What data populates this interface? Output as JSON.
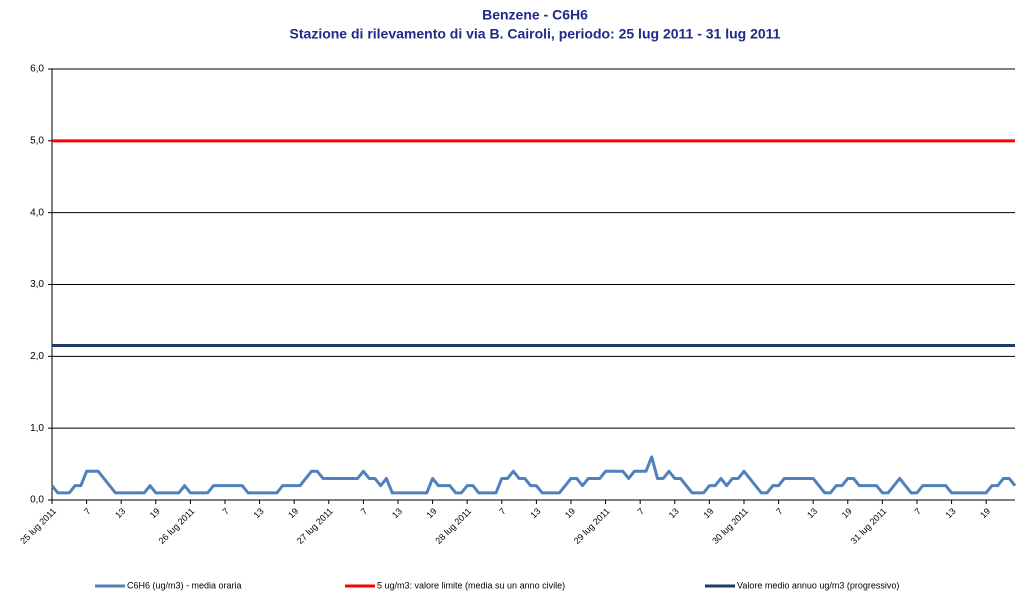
{
  "chart_data": {
    "type": "line",
    "title": "Benzene - C6H6",
    "subtitle": "Stazione di rilevamento di via B. Cairoli, periodo: 25 lug 2011 - 31 lug 2011",
    "categories": [
      "25 lug 2011",
      null,
      null,
      null,
      null,
      null,
      "7",
      null,
      null,
      null,
      null,
      null,
      "13",
      null,
      null,
      null,
      null,
      null,
      "19",
      null,
      null,
      null,
      null,
      null,
      "26 lug 2011",
      null,
      null,
      null,
      null,
      null,
      "7",
      null,
      null,
      null,
      null,
      null,
      "13",
      null,
      null,
      null,
      null,
      null,
      "19",
      null,
      null,
      null,
      null,
      null,
      "27 lug 2011",
      null,
      null,
      null,
      null,
      null,
      "7",
      null,
      null,
      null,
      null,
      null,
      "13",
      null,
      null,
      null,
      null,
      null,
      "19",
      null,
      null,
      null,
      null,
      null,
      "28 lug 2011",
      null,
      null,
      null,
      null,
      null,
      "7",
      null,
      null,
      null,
      null,
      null,
      "13",
      null,
      null,
      null,
      null,
      null,
      "19",
      null,
      null,
      null,
      null,
      null,
      "29 lug 2011",
      null,
      null,
      null,
      null,
      null,
      "7",
      null,
      null,
      null,
      null,
      null,
      "13",
      null,
      null,
      null,
      null,
      null,
      "19",
      null,
      null,
      null,
      null,
      null,
      "30 lug 2011",
      null,
      null,
      null,
      null,
      null,
      "7",
      null,
      null,
      null,
      null,
      null,
      "13",
      null,
      null,
      null,
      null,
      null,
      "19",
      null,
      null,
      null,
      null,
      null,
      "31 lug 2011",
      null,
      null,
      null,
      null,
      null,
      "7",
      null,
      null,
      null,
      null,
      null,
      "13",
      null,
      null,
      null,
      null,
      null,
      "19",
      null,
      null,
      null,
      null,
      null
    ],
    "series": [
      {
        "name": "C6H6 (ug/m3)  - media oraria",
        "color": "#4f81bd",
        "values": [
          0.2,
          0.1,
          0.1,
          0.1,
          0.2,
          0.2,
          0.4,
          0.4,
          0.4,
          0.3,
          0.2,
          0.1,
          0.1,
          0.1,
          0.1,
          0.1,
          0.1,
          0.2,
          0.1,
          0.1,
          0.1,
          0.1,
          0.1,
          0.2,
          0.1,
          0.1,
          0.1,
          0.1,
          0.2,
          0.2,
          0.2,
          0.2,
          0.2,
          0.2,
          0.1,
          0.1,
          0.1,
          0.1,
          0.1,
          0.1,
          0.2,
          0.2,
          0.2,
          0.2,
          0.3,
          0.4,
          0.4,
          0.3,
          0.3,
          0.3,
          0.3,
          0.3,
          0.3,
          0.3,
          0.4,
          0.3,
          0.3,
          0.2,
          0.3,
          0.1,
          0.1,
          0.1,
          0.1,
          0.1,
          0.1,
          0.1,
          0.3,
          0.2,
          0.2,
          0.2,
          0.1,
          0.1,
          0.2,
          0.2,
          0.1,
          0.1,
          0.1,
          0.1,
          0.3,
          0.3,
          0.4,
          0.3,
          0.3,
          0.2,
          0.2,
          0.1,
          0.1,
          0.1,
          0.1,
          0.2,
          0.3,
          0.3,
          0.2,
          0.3,
          0.3,
          0.3,
          0.4,
          0.4,
          0.4,
          0.4,
          0.3,
          0.4,
          0.4,
          0.4,
          0.6,
          0.3,
          0.3,
          0.4,
          0.3,
          0.3,
          0.2,
          0.1,
          0.1,
          0.1,
          0.2,
          0.2,
          0.3,
          0.2,
          0.3,
          0.3,
          0.4,
          0.3,
          0.2,
          0.1,
          0.1,
          0.2,
          0.2,
          0.3,
          0.3,
          0.3,
          0.3,
          0.3,
          0.3,
          0.2,
          0.1,
          0.1,
          0.2,
          0.2,
          0.3,
          0.3,
          0.2,
          0.2,
          0.2,
          0.2,
          0.1,
          0.1,
          0.2,
          0.3,
          0.2,
          0.1,
          0.1,
          0.2,
          0.2,
          0.2,
          0.2,
          0.2,
          0.1,
          0.1,
          0.1,
          0.1,
          0.1,
          0.1,
          0.1,
          0.2,
          0.2,
          0.3,
          0.3,
          0.2
        ]
      }
    ],
    "reference_lines": [
      {
        "name": "5 ug/m3: valore limite (media su un anno civile)",
        "color": "#ff0000",
        "value": 5
      },
      {
        "name": "Valore medio annuo ug/m3 (progressivo)",
        "color": "#1f3864",
        "value": 2.15
      }
    ],
    "ylim": [
      0,
      6
    ],
    "yticks": [
      {
        "value": 0,
        "label": "0,0"
      },
      {
        "value": 1,
        "label": "1,0"
      },
      {
        "value": 2,
        "label": "2,0"
      },
      {
        "value": 3,
        "label": "3,0"
      },
      {
        "value": 4,
        "label": "4,0"
      },
      {
        "value": 5,
        "label": "5,0"
      },
      {
        "value": 6,
        "label": "6,0"
      }
    ],
    "grid": true
  }
}
